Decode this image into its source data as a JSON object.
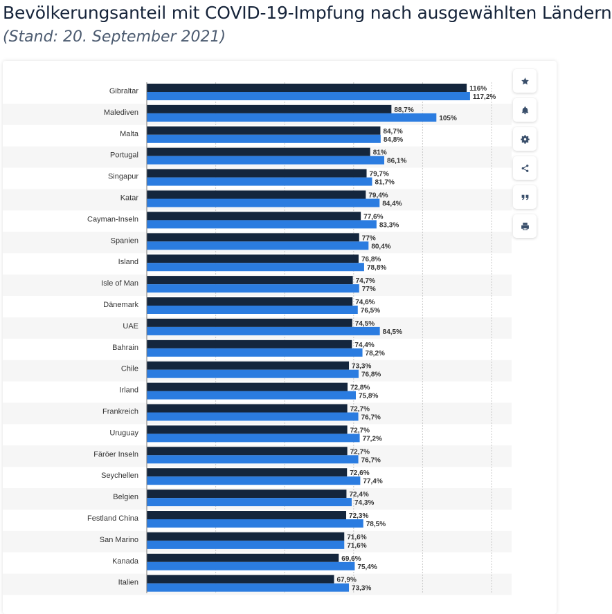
{
  "page": {
    "title": "Bevölkerungsanteil mit COVID-19-Impfung nach ausgewählten Ländern",
    "subtitle": "(Stand: 20. September 2021)"
  },
  "toolbar": [
    {
      "name": "star-icon"
    },
    {
      "name": "bell-icon"
    },
    {
      "name": "gear-icon"
    },
    {
      "name": "share-icon"
    },
    {
      "name": "quote-icon"
    },
    {
      "name": "print-icon"
    }
  ],
  "colors": {
    "series1": "#14263d",
    "series2": "#2b7ce0",
    "stripe": "#f6f6f6",
    "grid": "#c8c8c8",
    "text": "#333333"
  },
  "chart_data": {
    "type": "bar",
    "orientation": "horizontal",
    "xlim": [
      0,
      125
    ],
    "grid": true,
    "categories": [
      "Gibraltar",
      "Malediven",
      "Malta",
      "Portugal",
      "Singapur",
      "Katar",
      "Cayman-Inseln",
      "Spanien",
      "Island",
      "Isle of Man",
      "Dänemark",
      "UAE",
      "Bahrain",
      "Chile",
      "Irland",
      "Frankreich",
      "Uruguay",
      "Färöer Inseln",
      "Seychellen",
      "Belgien",
      "Festland China",
      "San Marino",
      "Kanada",
      "Italien"
    ],
    "series": [
      {
        "color": "#14263d",
        "values": [
          116,
          88.7,
          84.7,
          81,
          79.7,
          79.4,
          77.6,
          77,
          76.8,
          74.7,
          74.6,
          74.5,
          74.4,
          73.3,
          72.8,
          72.7,
          72.7,
          72.7,
          72.6,
          72.4,
          72.3,
          71.6,
          69.6,
          67.9
        ],
        "labels": [
          "116%",
          "88,7%",
          "84,7%",
          "81%",
          "79,7%",
          "79,4%",
          "77,6%",
          "77%",
          "76,8%",
          "74,7%",
          "74,6%",
          "74,5%",
          "74,4%",
          "73,3%",
          "72,8%",
          "72,7%",
          "72,7%",
          "72,7%",
          "72,6%",
          "72,4%",
          "72,3%",
          "71,6%",
          "69,6%",
          "67,9%"
        ]
      },
      {
        "color": "#2b7ce0",
        "values": [
          117.2,
          105,
          84.8,
          86.1,
          81.7,
          84.4,
          83.3,
          80.4,
          78.8,
          77,
          76.5,
          84.5,
          78.2,
          76.8,
          75.8,
          76.7,
          77.2,
          76.7,
          77.4,
          74.3,
          78.5,
          71.6,
          75.4,
          73.3
        ],
        "labels": [
          "117,2%",
          "105%",
          "84,8%",
          "86,1%",
          "81,7%",
          "84,4%",
          "83,3%",
          "80,4%",
          "78,8%",
          "77%",
          "76,5%",
          "84,5%",
          "78,2%",
          "76,8%",
          "75,8%",
          "76,7%",
          "77,2%",
          "76,7%",
          "77,4%",
          "74,3%",
          "78,5%",
          "71,6%",
          "75,4%",
          "73,3%"
        ]
      }
    ]
  }
}
